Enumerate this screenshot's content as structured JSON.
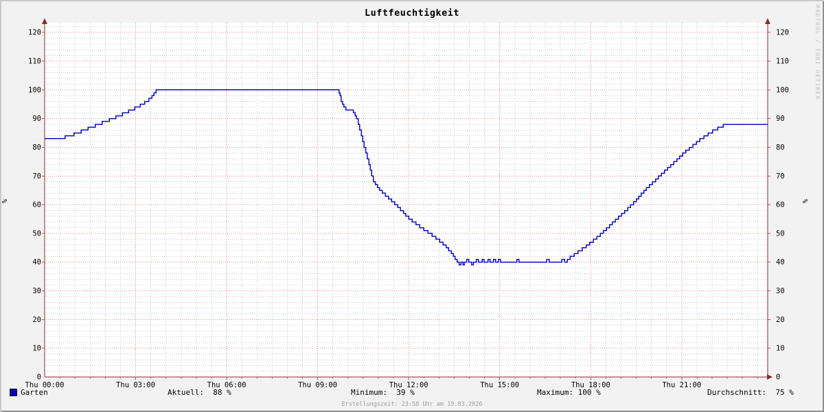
{
  "title": "Luftfeuchtigkeit",
  "watermark": "RRDTOOL / TOBI OETIKER",
  "footer": "Erstellungszeit: 23:58 Uhr am 19.03.2026",
  "legend": {
    "series_label": "Garten",
    "series_color": "#0000c0",
    "aktuell": "Aktuell:  88 %",
    "minimum": "Minimum:  39 %",
    "maximum": "Maximum: 100 %",
    "durchschnitt": "Durchschnitt:  75 %"
  },
  "chart_data": {
    "type": "line",
    "title": "Luftfeuchtigkeit",
    "ylabel": "%",
    "ylabel_right": "%",
    "ylim": [
      0,
      123
    ],
    "y_ticks": [
      0,
      10,
      20,
      30,
      40,
      50,
      60,
      70,
      80,
      90,
      100,
      110,
      120
    ],
    "x_range_minutes": [
      0,
      1430
    ],
    "x_ticks": [
      {
        "minutes": 0,
        "label": "Thu 00:00"
      },
      {
        "minutes": 180,
        "label": "Thu 03:00"
      },
      {
        "minutes": 360,
        "label": "Thu 06:00"
      },
      {
        "minutes": 540,
        "label": "Thu 09:00"
      },
      {
        "minutes": 720,
        "label": "Thu 12:00"
      },
      {
        "minutes": 900,
        "label": "Thu 15:00"
      },
      {
        "minutes": 1080,
        "label": "Thu 18:00"
      },
      {
        "minutes": 1260,
        "label": "Thu 21:00"
      }
    ],
    "minor_grid": {
      "x_step_minutes": 30,
      "y_step": 2
    },
    "grid": true,
    "legend_position": "bottom",
    "colors": {
      "line": "#0d0dc1",
      "major_grid": "#e78585",
      "minor_grid": "#c9c9c9",
      "axis": "#8a2b2b",
      "ticks": "#cf4a4a",
      "canvas": "#ffffff",
      "background": "#f2f2f2"
    },
    "series": [
      {
        "name": "Garten",
        "color": "#0000c0",
        "unit": "%",
        "stats": {
          "aktuell": 88,
          "minimum": 39,
          "maximum": 100,
          "durchschnitt": 75
        },
        "points": [
          [
            0,
            83
          ],
          [
            40,
            84
          ],
          [
            58,
            85
          ],
          [
            72,
            86
          ],
          [
            86,
            87
          ],
          [
            100,
            88
          ],
          [
            114,
            89
          ],
          [
            128,
            90
          ],
          [
            141,
            91
          ],
          [
            154,
            92
          ],
          [
            166,
            93
          ],
          [
            178,
            94
          ],
          [
            189,
            95
          ],
          [
            198,
            96
          ],
          [
            206,
            97
          ],
          [
            212,
            98
          ],
          [
            216,
            99
          ],
          [
            220,
            100
          ],
          [
            580,
            100
          ],
          [
            582,
            99
          ],
          [
            584,
            98
          ],
          [
            586,
            96
          ],
          [
            589,
            95
          ],
          [
            592,
            94
          ],
          [
            596,
            93
          ],
          [
            611,
            92
          ],
          [
            614,
            91
          ],
          [
            617,
            90
          ],
          [
            620,
            88
          ],
          [
            623,
            86
          ],
          [
            626,
            84
          ],
          [
            629,
            82
          ],
          [
            632,
            80
          ],
          [
            635,
            78
          ],
          [
            638,
            76
          ],
          [
            641,
            74
          ],
          [
            644,
            72
          ],
          [
            647,
            70
          ],
          [
            650,
            68
          ],
          [
            654,
            67
          ],
          [
            658,
            66
          ],
          [
            662,
            65
          ],
          [
            668,
            64
          ],
          [
            674,
            63
          ],
          [
            680,
            62
          ],
          [
            686,
            61
          ],
          [
            692,
            60
          ],
          [
            698,
            59
          ],
          [
            704,
            58
          ],
          [
            710,
            57
          ],
          [
            714,
            56
          ],
          [
            720,
            55
          ],
          [
            727,
            54
          ],
          [
            734,
            53
          ],
          [
            742,
            52
          ],
          [
            750,
            51
          ],
          [
            758,
            50
          ],
          [
            766,
            49
          ],
          [
            774,
            48
          ],
          [
            781,
            47
          ],
          [
            788,
            46
          ],
          [
            794,
            45
          ],
          [
            799,
            44
          ],
          [
            804,
            43
          ],
          [
            808,
            42
          ],
          [
            812,
            41
          ],
          [
            816,
            40
          ],
          [
            820,
            39
          ],
          [
            823,
            40
          ],
          [
            827,
            39
          ],
          [
            830,
            40
          ],
          [
            835,
            41
          ],
          [
            839,
            40
          ],
          [
            844,
            39
          ],
          [
            848,
            40
          ],
          [
            854,
            41
          ],
          [
            858,
            40
          ],
          [
            865,
            41
          ],
          [
            869,
            40
          ],
          [
            877,
            41
          ],
          [
            881,
            40
          ],
          [
            888,
            41
          ],
          [
            892,
            40
          ],
          [
            897,
            41
          ],
          [
            901,
            40
          ],
          [
            934,
            41
          ],
          [
            938,
            40
          ],
          [
            993,
            41
          ],
          [
            998,
            40
          ],
          [
            1023,
            41
          ],
          [
            1028,
            40
          ],
          [
            1034,
            41
          ],
          [
            1039,
            42
          ],
          [
            1047,
            43
          ],
          [
            1055,
            44
          ],
          [
            1063,
            45
          ],
          [
            1071,
            46
          ],
          [
            1078,
            47
          ],
          [
            1085,
            48
          ],
          [
            1092,
            49
          ],
          [
            1099,
            50
          ],
          [
            1105,
            51
          ],
          [
            1111,
            52
          ],
          [
            1117,
            53
          ],
          [
            1123,
            54
          ],
          [
            1129,
            55
          ],
          [
            1135,
            56
          ],
          [
            1141,
            57
          ],
          [
            1147,
            58
          ],
          [
            1153,
            59
          ],
          [
            1159,
            60
          ],
          [
            1165,
            61
          ],
          [
            1170,
            62
          ],
          [
            1175,
            63
          ],
          [
            1180,
            64
          ],
          [
            1185,
            65
          ],
          [
            1190,
            66
          ],
          [
            1196,
            67
          ],
          [
            1202,
            68
          ],
          [
            1208,
            69
          ],
          [
            1214,
            70
          ],
          [
            1220,
            71
          ],
          [
            1226,
            72
          ],
          [
            1232,
            73
          ],
          [
            1238,
            74
          ],
          [
            1244,
            75
          ],
          [
            1250,
            76
          ],
          [
            1256,
            77
          ],
          [
            1262,
            78
          ],
          [
            1268,
            79
          ],
          [
            1275,
            80
          ],
          [
            1282,
            81
          ],
          [
            1289,
            82
          ],
          [
            1296,
            83
          ],
          [
            1304,
            84
          ],
          [
            1312,
            85
          ],
          [
            1321,
            86
          ],
          [
            1331,
            87
          ],
          [
            1342,
            88
          ],
          [
            1430,
            88
          ]
        ]
      }
    ]
  }
}
